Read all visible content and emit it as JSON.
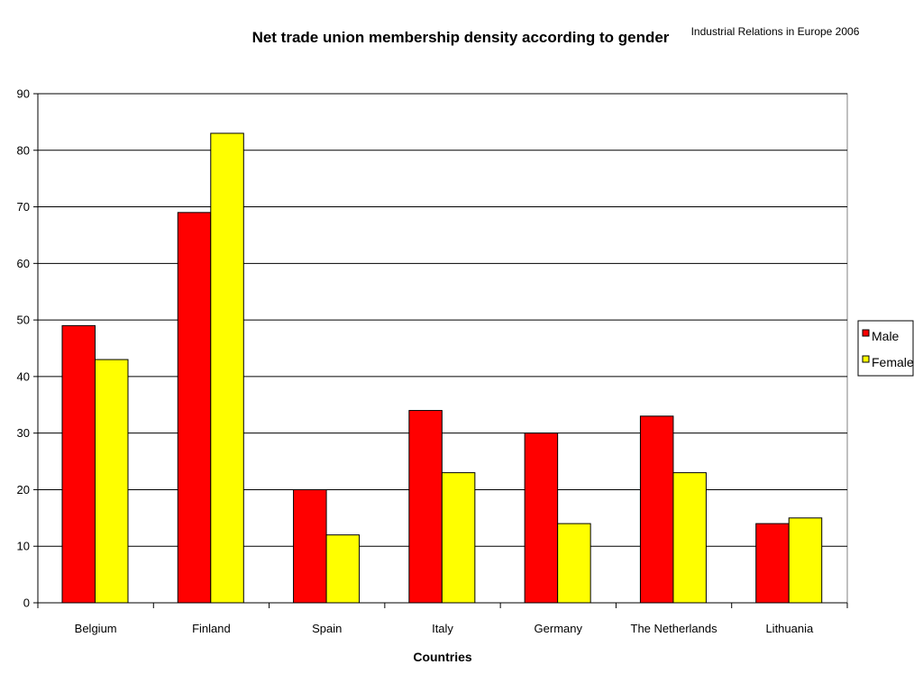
{
  "chart_data": {
    "type": "bar",
    "title": "Net trade union membership density according to gender",
    "source_note": "Industrial Relations in Europe 2006",
    "xlabel": "Countries",
    "ylabel": "",
    "categories": [
      "Belgium",
      "Finland",
      "Spain",
      "Italy",
      "Germany",
      "The Netherlands",
      "Lithuania"
    ],
    "series": [
      {
        "name": "Male",
        "color": "#ff0000",
        "values": [
          49,
          69,
          20,
          34,
          30,
          33,
          14
        ]
      },
      {
        "name": "Female",
        "color": "#ffff00",
        "values": [
          43,
          83,
          12,
          23,
          14,
          23,
          15
        ]
      }
    ],
    "ylim": [
      0,
      90
    ],
    "yticks": [
      0,
      10,
      20,
      30,
      40,
      50,
      60,
      70,
      80,
      90
    ],
    "grid": true,
    "legend_position": "right"
  }
}
